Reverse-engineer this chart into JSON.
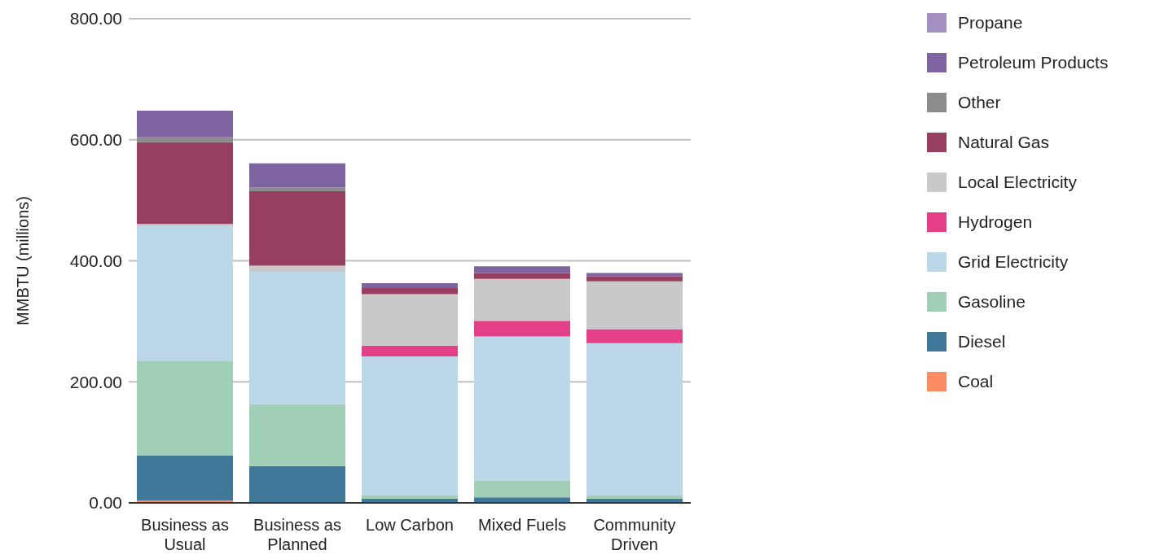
{
  "chart_data": {
    "type": "bar",
    "stacked": true,
    "ylabel": "MMBTU (millions)",
    "categories": [
      "Business as Usual",
      "Business as Planned",
      "Low Carbon",
      "Mixed Fuels",
      "Community Driven"
    ],
    "series": [
      {
        "name": "Coal",
        "color": "#fb8b63",
        "values": [
          4,
          0,
          0,
          0,
          0
        ]
      },
      {
        "name": "Diesel",
        "color": "#3f7899",
        "values": [
          74,
          61,
          7,
          9,
          7
        ]
      },
      {
        "name": "Gasoline",
        "color": "#a0ceb6",
        "values": [
          157,
          102,
          5,
          28,
          5
        ]
      },
      {
        "name": "Grid Electricity",
        "color": "#bcd7e7",
        "values": [
          222,
          219,
          230,
          238,
          252
        ]
      },
      {
        "name": "Hydrogen",
        "color": "#e4408a",
        "values": [
          0,
          0,
          18,
          26,
          23
        ]
      },
      {
        "name": "Local Electricity",
        "color": "#c9c9c9",
        "values": [
          4,
          10,
          85,
          69,
          79
        ]
      },
      {
        "name": "Natural Gas",
        "color": "#963f60",
        "values": [
          135,
          123,
          10,
          10,
          8
        ]
      },
      {
        "name": "Other",
        "color": "#8c8c8c",
        "values": [
          8,
          6,
          0,
          0,
          0
        ]
      },
      {
        "name": "Petroleum Products",
        "color": "#7e64a1",
        "values": [
          44,
          40,
          8,
          11,
          6
        ]
      },
      {
        "name": "Propane",
        "color": "#a590c2",
        "values": [
          0,
          0,
          0,
          0,
          0
        ]
      }
    ],
    "ylim": [
      0,
      800
    ],
    "yticks": [
      {
        "value": 0,
        "label": "0.00"
      },
      {
        "value": 200,
        "label": "200.00"
      },
      {
        "value": 400,
        "label": "400.00"
      },
      {
        "value": 600,
        "label": "600.00"
      },
      {
        "value": 800,
        "label": "800.00"
      }
    ],
    "grid": "y",
    "legend": "top right"
  }
}
